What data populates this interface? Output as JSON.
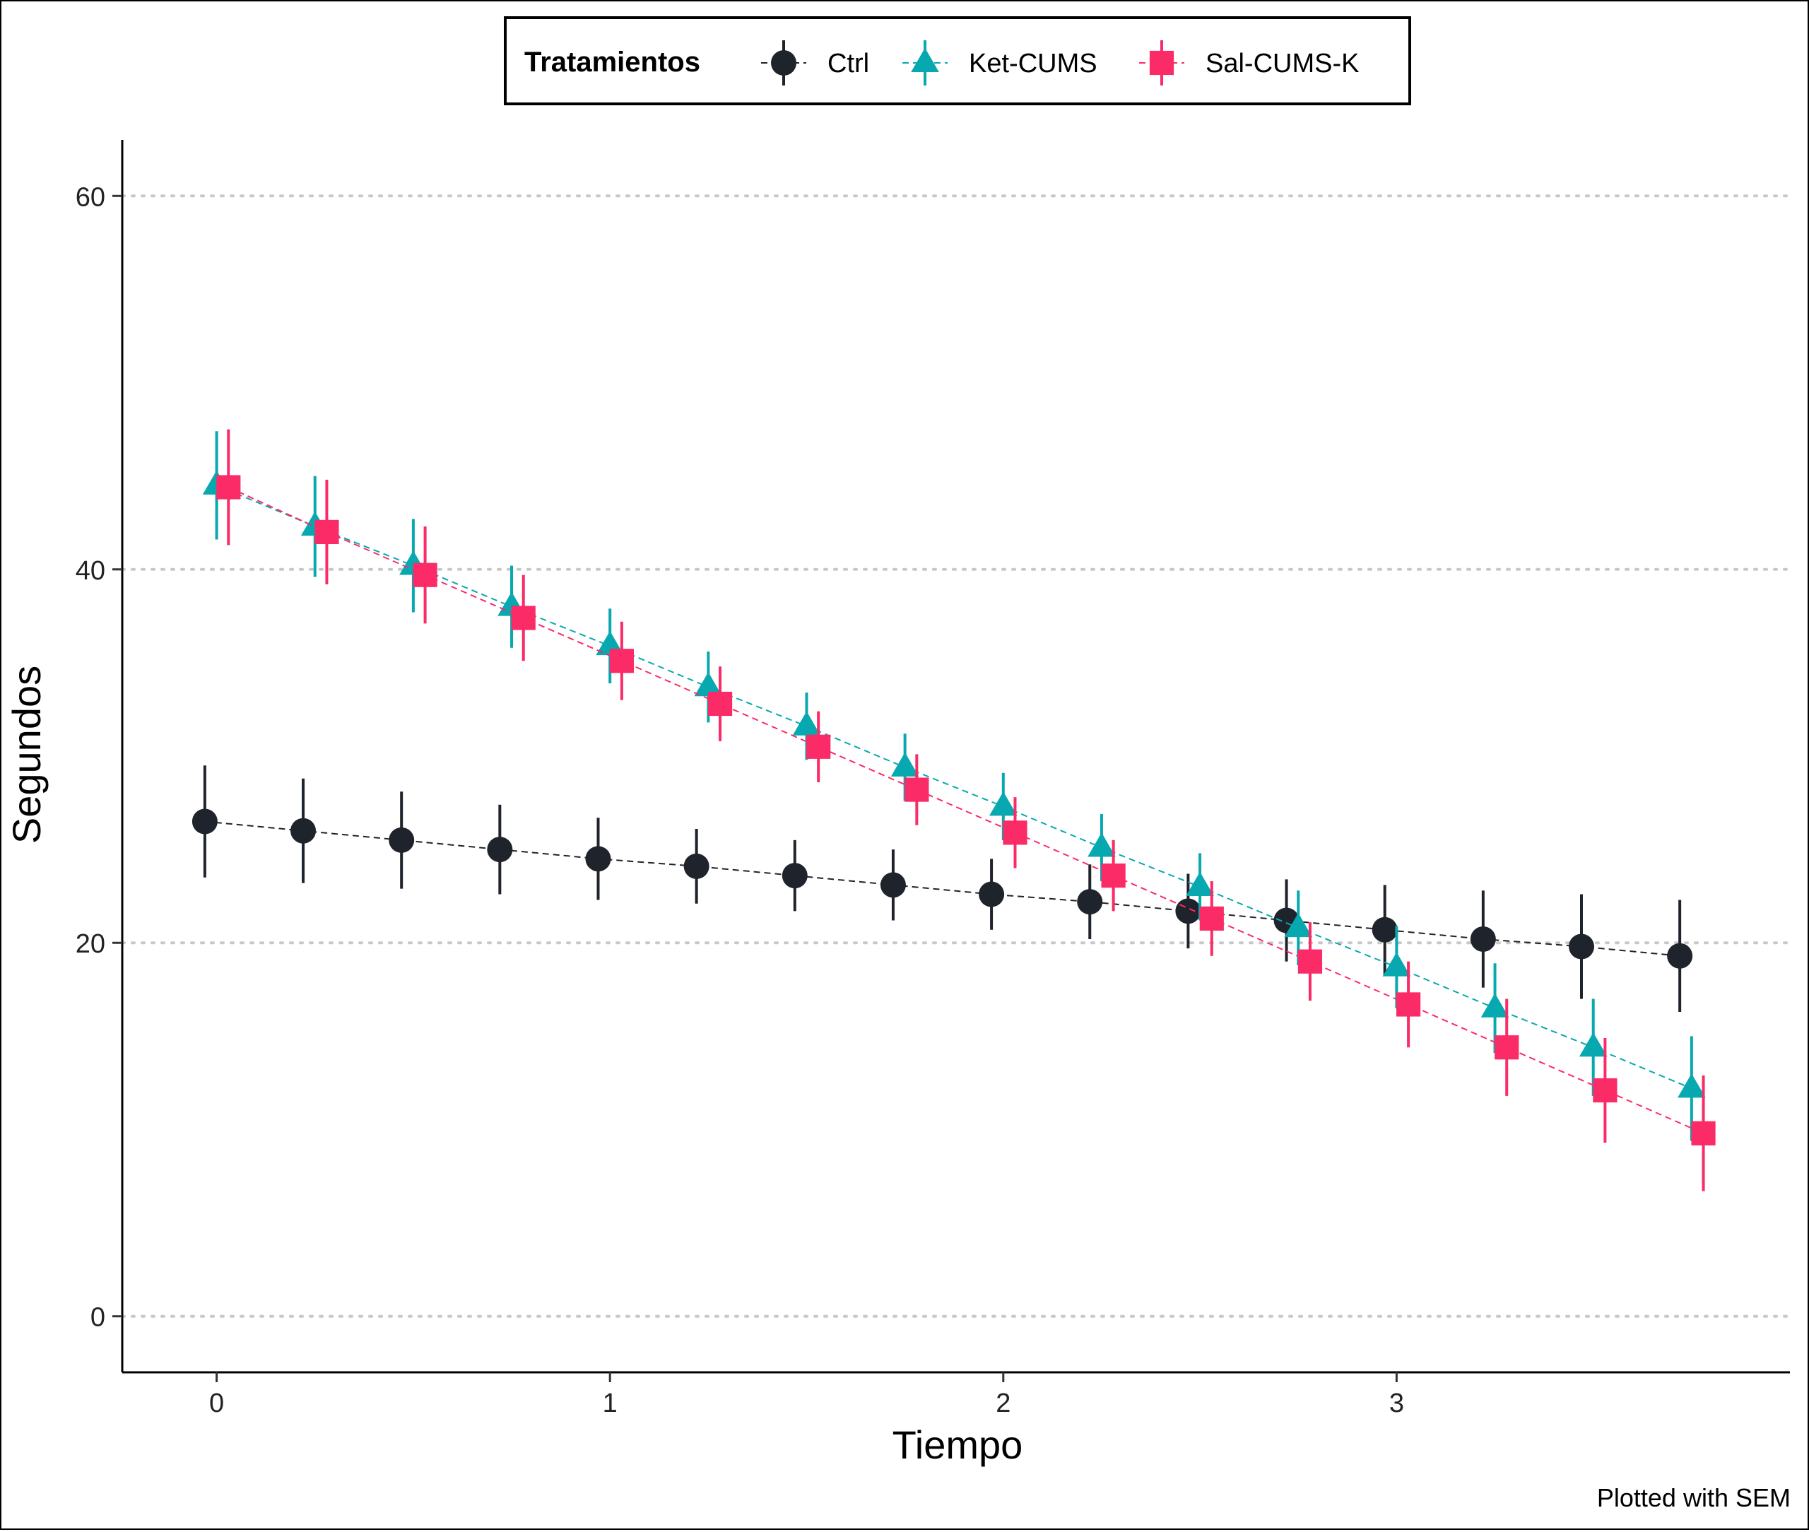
{
  "chart_data": {
    "type": "line",
    "title": "",
    "xlabel": "Tiempo",
    "ylabel": "Segundos",
    "caption": "Plotted with SEM",
    "xlim": [
      -0.24,
      4.0
    ],
    "ylim": [
      -3.0,
      63.0
    ],
    "x_ticks": [
      0,
      1,
      2,
      3
    ],
    "x_tick_labels": [
      "0",
      "1",
      "2",
      "3"
    ],
    "y_ticks": [
      0,
      20,
      40,
      60
    ],
    "y_tick_labels": [
      "0",
      "20",
      "40",
      "60"
    ],
    "grid": "horizontal dotted",
    "legend": {
      "position": "top",
      "title": "Tratamientos",
      "entries": [
        "Ctrl",
        "Ket-CUMS",
        "Sal-CUMS-K"
      ]
    },
    "series": [
      {
        "name": "Ctrl",
        "color": "#1f232b",
        "marker": "circle",
        "x": [
          -0.03,
          0.22,
          0.47,
          0.72,
          0.97,
          1.22,
          1.47,
          1.72,
          1.97,
          2.22,
          2.47,
          2.72,
          2.97,
          3.22,
          3.47,
          3.72
        ],
        "y": [
          26.5,
          26.0,
          25.5,
          25.0,
          24.5,
          24.1,
          23.6,
          23.1,
          22.6,
          22.2,
          21.7,
          21.2,
          20.7,
          20.2,
          19.8,
          19.3
        ],
        "sem": [
          3.0,
          2.8,
          2.6,
          2.4,
          2.2,
          2.0,
          1.9,
          1.9,
          1.9,
          2.0,
          2.0,
          2.2,
          2.4,
          2.6,
          2.8,
          3.0
        ]
      },
      {
        "name": "Ket-CUMS",
        "color": "#08a8b0",
        "marker": "triangle",
        "x": [
          0.0,
          0.25,
          0.5,
          0.75,
          1.0,
          1.25,
          1.5,
          1.75,
          2.0,
          2.25,
          2.5,
          2.75,
          3.0,
          3.25,
          3.5,
          3.75
        ],
        "y": [
          44.5,
          42.3,
          40.2,
          38.0,
          35.9,
          33.7,
          31.6,
          29.4,
          27.3,
          25.1,
          23.0,
          20.8,
          18.7,
          16.5,
          14.4,
          12.2
        ],
        "sem": [
          2.9,
          2.7,
          2.5,
          2.2,
          2.0,
          1.9,
          1.8,
          1.8,
          1.8,
          1.8,
          1.8,
          2.0,
          2.2,
          2.4,
          2.6,
          2.8
        ]
      },
      {
        "name": "Sal-CUMS-K",
        "color": "#fa2b66",
        "marker": "square",
        "x": [
          0.03,
          0.28,
          0.53,
          0.78,
          1.03,
          1.28,
          1.53,
          1.78,
          2.03,
          2.28,
          2.53,
          2.78,
          3.03,
          3.28,
          3.53,
          3.78
        ],
        "y": [
          44.4,
          42.0,
          39.7,
          37.4,
          35.1,
          32.8,
          30.5,
          28.2,
          25.9,
          23.6,
          21.3,
          19.0,
          16.7,
          14.4,
          12.1,
          9.8
        ],
        "sem": [
          3.1,
          2.8,
          2.6,
          2.3,
          2.1,
          2.0,
          1.9,
          1.9,
          1.9,
          1.9,
          2.0,
          2.1,
          2.3,
          2.6,
          2.8,
          3.1
        ]
      }
    ]
  }
}
